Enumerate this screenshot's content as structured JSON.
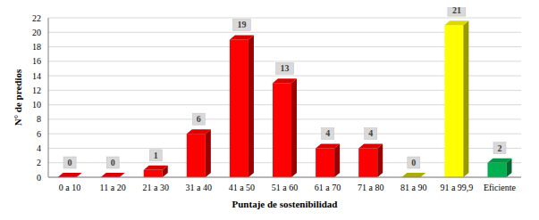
{
  "chart_data": {
    "type": "bar",
    "categories": [
      "0 a 10",
      "11 a 20",
      "21 a 30",
      "31 a 40",
      "41 a 50",
      "51 a 60",
      "61 a 70",
      "71 a 80",
      "81 a 90",
      "91 a 99,9",
      "Eficiente"
    ],
    "values": [
      0,
      0,
      1,
      6,
      19,
      13,
      4,
      4,
      0,
      21,
      2
    ],
    "colors": [
      "#ff0000",
      "#ff0000",
      "#ff0000",
      "#ff0000",
      "#ff0000",
      "#ff0000",
      "#ff0000",
      "#ff0000",
      "#cccc00",
      "#ffff00",
      "#00b050"
    ],
    "xlabel": "Puntaje de sostenibilidad",
    "ylabel": "N° de predios",
    "ylim": [
      0,
      22
    ],
    "yticks": [
      0,
      2,
      4,
      6,
      8,
      10,
      12,
      14,
      16,
      18,
      20,
      22
    ],
    "grid": true,
    "data_labels": true
  }
}
